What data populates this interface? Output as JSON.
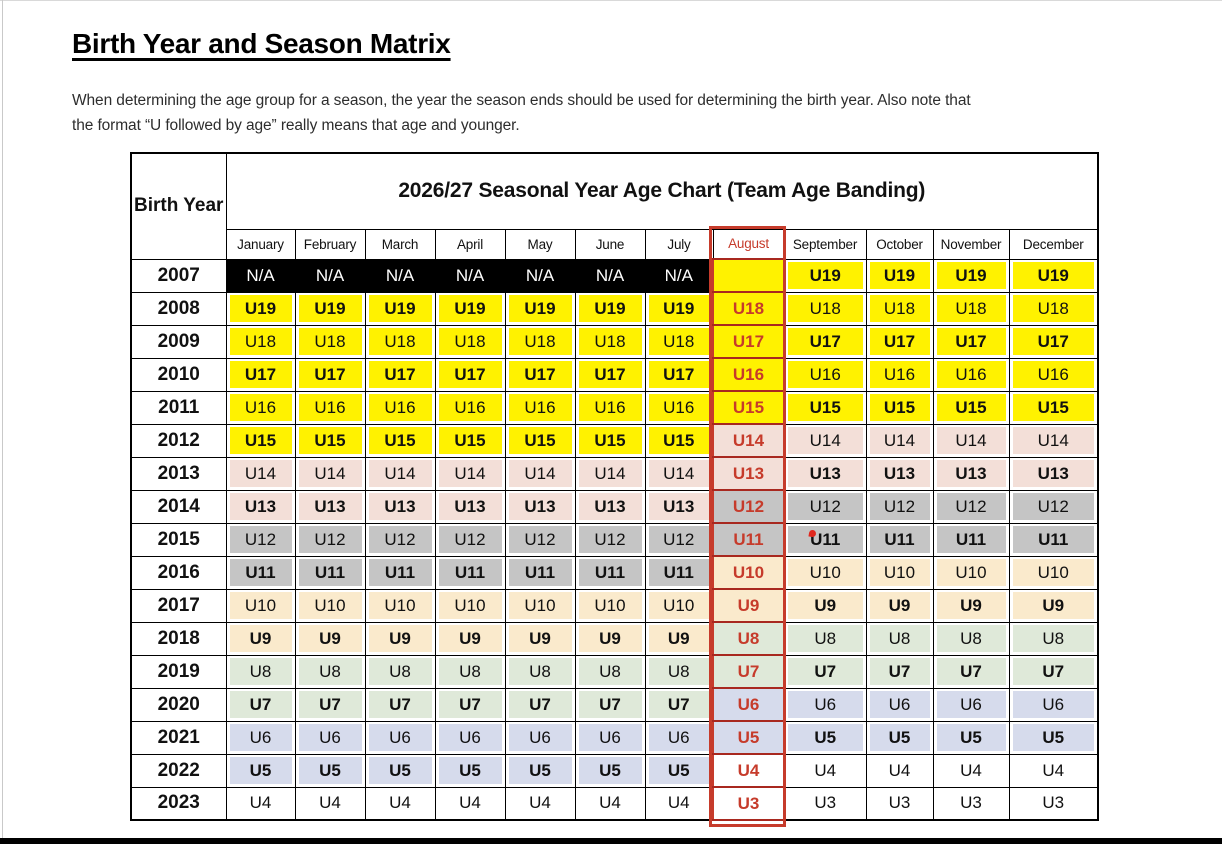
{
  "page": {
    "heading": "Birth Year and Season Matrix",
    "intro_line1": "When determining the age group for a season, the year the season ends should be used for determining the birth year. Also note that",
    "intro_line2": "the format “U followed by age” really means that age and younger."
  },
  "table": {
    "corner_header": "Birth Year",
    "banner_title": "2026/27 Seasonal Year Age Chart (Team Age Banding)",
    "months": [
      "January",
      "February",
      "March",
      "April",
      "May",
      "June",
      "July",
      "August",
      "September",
      "October",
      "November",
      "December"
    ],
    "highlighted_month": "August",
    "band_colors": {
      "yellow": "#FFF200",
      "rose": "#F3DFD8",
      "gray": "#C5C5C5",
      "cream": "#FAEACC",
      "green": "#DFE9D9",
      "blue": "#D6DBEC",
      "white": "#FFFFFF"
    },
    "na_colors": {
      "bg": "#000000",
      "text": "#FFFFFF"
    },
    "accent_red": "#C63B2B",
    "accent_red_dark": "#A8281F",
    "comment_marker": {
      "year": "2015",
      "month": "September"
    },
    "rows": [
      {
        "year": "2007",
        "jan_jul": {
          "text": "N/A",
          "band": "na",
          "bold": false
        },
        "aug": {
          "text": "",
          "band": "yellow"
        },
        "sep_dec": {
          "text": "U19",
          "band": "yellow",
          "bold": true
        }
      },
      {
        "year": "2008",
        "jan_jul": {
          "text": "U19",
          "band": "yellow",
          "bold": true
        },
        "aug": {
          "text": "U18",
          "band": "yellow"
        },
        "sep_dec": {
          "text": "U18",
          "band": "yellow",
          "bold": false
        }
      },
      {
        "year": "2009",
        "jan_jul": {
          "text": "U18",
          "band": "yellow",
          "bold": false
        },
        "aug": {
          "text": "U17",
          "band": "yellow"
        },
        "sep_dec": {
          "text": "U17",
          "band": "yellow",
          "bold": true
        }
      },
      {
        "year": "2010",
        "jan_jul": {
          "text": "U17",
          "band": "yellow",
          "bold": true
        },
        "aug": {
          "text": "U16",
          "band": "yellow"
        },
        "sep_dec": {
          "text": "U16",
          "band": "yellow",
          "bold": false
        }
      },
      {
        "year": "2011",
        "jan_jul": {
          "text": "U16",
          "band": "yellow",
          "bold": false
        },
        "aug": {
          "text": "U15",
          "band": "yellow"
        },
        "sep_dec": {
          "text": "U15",
          "band": "yellow",
          "bold": true
        }
      },
      {
        "year": "2012",
        "jan_jul": {
          "text": "U15",
          "band": "yellow",
          "bold": true
        },
        "aug": {
          "text": "U14",
          "band": "rose"
        },
        "sep_dec": {
          "text": "U14",
          "band": "rose",
          "bold": false
        }
      },
      {
        "year": "2013",
        "jan_jul": {
          "text": "U14",
          "band": "rose",
          "bold": false
        },
        "aug": {
          "text": "U13",
          "band": "rose"
        },
        "sep_dec": {
          "text": "U13",
          "band": "rose",
          "bold": true
        }
      },
      {
        "year": "2014",
        "jan_jul": {
          "text": "U13",
          "band": "rose",
          "bold": true
        },
        "aug": {
          "text": "U12",
          "band": "gray"
        },
        "sep_dec": {
          "text": "U12",
          "band": "gray",
          "bold": false
        }
      },
      {
        "year": "2015",
        "jan_jul": {
          "text": "U12",
          "band": "gray",
          "bold": false
        },
        "aug": {
          "text": "U11",
          "band": "gray"
        },
        "sep_dec": {
          "text": "U11",
          "band": "gray",
          "bold": true
        }
      },
      {
        "year": "2016",
        "jan_jul": {
          "text": "U11",
          "band": "gray",
          "bold": true
        },
        "aug": {
          "text": "U10",
          "band": "cream"
        },
        "sep_dec": {
          "text": "U10",
          "band": "cream",
          "bold": false
        }
      },
      {
        "year": "2017",
        "jan_jul": {
          "text": "U10",
          "band": "cream",
          "bold": false
        },
        "aug": {
          "text": "U9",
          "band": "cream"
        },
        "sep_dec": {
          "text": "U9",
          "band": "cream",
          "bold": true
        }
      },
      {
        "year": "2018",
        "jan_jul": {
          "text": "U9",
          "band": "cream",
          "bold": true
        },
        "aug": {
          "text": "U8",
          "band": "green"
        },
        "sep_dec": {
          "text": "U8",
          "band": "green",
          "bold": false
        }
      },
      {
        "year": "2019",
        "jan_jul": {
          "text": "U8",
          "band": "green",
          "bold": false
        },
        "aug": {
          "text": "U7",
          "band": "green"
        },
        "sep_dec": {
          "text": "U7",
          "band": "green",
          "bold": true
        }
      },
      {
        "year": "2020",
        "jan_jul": {
          "text": "U7",
          "band": "green",
          "bold": true
        },
        "aug": {
          "text": "U6",
          "band": "blue"
        },
        "sep_dec": {
          "text": "U6",
          "band": "blue",
          "bold": false
        }
      },
      {
        "year": "2021",
        "jan_jul": {
          "text": "U6",
          "band": "blue",
          "bold": false
        },
        "aug": {
          "text": "U5",
          "band": "blue"
        },
        "sep_dec": {
          "text": "U5",
          "band": "blue",
          "bold": true
        }
      },
      {
        "year": "2022",
        "jan_jul": {
          "text": "U5",
          "band": "blue",
          "bold": true
        },
        "aug": {
          "text": "U4",
          "band": "white"
        },
        "sep_dec": {
          "text": "U4",
          "band": "white",
          "bold": false
        }
      },
      {
        "year": "2023",
        "jan_jul": {
          "text": "U4",
          "band": "white",
          "bold": false
        },
        "aug": {
          "text": "U3",
          "band": "white"
        },
        "sep_dec": {
          "text": "U3",
          "band": "white",
          "bold": false
        }
      }
    ]
  }
}
